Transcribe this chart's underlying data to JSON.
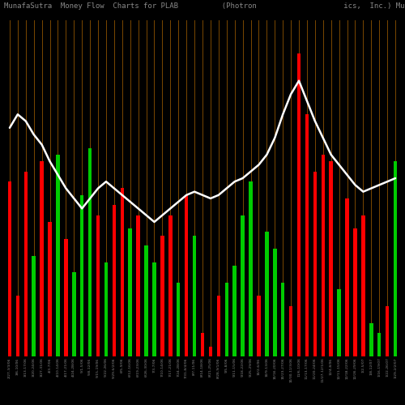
{
  "title": "MunafaSutra  Money Flow  Charts for PLAB          (Photron                    ics,  Inc.) MunafaSutra.com",
  "background_color": "#000000",
  "grid_color": "#7a4800",
  "bar_colors": [
    "#ff0000",
    "#ff0000",
    "#ff0000",
    "#00cc00",
    "#ff0000",
    "#ff0000",
    "#00cc00",
    "#ff0000",
    "#00cc00",
    "#00cc00",
    "#00cc00",
    "#ff0000",
    "#00cc00",
    "#ff0000",
    "#ff0000",
    "#00cc00",
    "#ff0000",
    "#00cc00",
    "#00cc00",
    "#ff0000",
    "#ff0000",
    "#00cc00",
    "#ff0000",
    "#00cc00",
    "#ff0000",
    "#ff0000",
    "#ff0000",
    "#00cc00",
    "#00cc00",
    "#00cc00",
    "#00cc00",
    "#ff0000",
    "#00cc00",
    "#00cc00",
    "#00cc00",
    "#ff0000",
    "#ff0000",
    "#ff0000",
    "#ff0000",
    "#ff0000",
    "#ff0000",
    "#00cc00",
    "#ff0000",
    "#ff0000",
    "#ff0000",
    "#00cc00",
    "#00cc00",
    "#ff0000",
    "#00cc00"
  ],
  "bar_heights": [
    52,
    18,
    55,
    30,
    58,
    40,
    60,
    35,
    25,
    48,
    62,
    42,
    28,
    45,
    50,
    38,
    42,
    33,
    28,
    36,
    42,
    22,
    48,
    36,
    7,
    3,
    18,
    22,
    27,
    42,
    52,
    18,
    37,
    32,
    22,
    15,
    90,
    72,
    55,
    60,
    58,
    20,
    47,
    38,
    42,
    10,
    7,
    15,
    58
  ],
  "line_values": [
    68,
    72,
    70,
    66,
    63,
    58,
    54,
    50,
    47,
    44,
    47,
    50,
    52,
    50,
    48,
    46,
    44,
    42,
    40,
    42,
    44,
    46,
    48,
    49,
    48,
    47,
    48,
    50,
    52,
    53,
    55,
    57,
    60,
    65,
    72,
    78,
    82,
    76,
    70,
    65,
    60,
    57,
    54,
    51,
    49,
    50,
    51,
    52,
    53
  ],
  "labels": [
    "2/27-3/3/06",
    "3/6-10/06",
    "3/13-17/06",
    "3/20-24/06",
    "3/27-31/06",
    "4/3-7/06",
    "4/10-14/06",
    "4/17-21/06",
    "4/24-28/06",
    "5/1-5/06",
    "5/8-12/06",
    "5/15-19/06",
    "5/22-26/06",
    "5/29-6/2/06",
    "6/5-9/06",
    "6/12-16/06",
    "6/19-23/06",
    "6/26-30/06",
    "7/3-7/06",
    "7/10-14/06",
    "7/17-21/06",
    "7/24-28/06",
    "7/31-8/4/06",
    "8/7-11/06",
    "8/14-18/06",
    "8/21-25/06",
    "8/28-9/1/06",
    "9/5-8/06",
    "9/11-15/06",
    "9/18-22/06",
    "9/25-29/06",
    "10/2-6/06",
    "10/9-13/06",
    "10/16-20/06",
    "10/23-27/06",
    "10/30-11/3/06",
    "11/6-10/06",
    "11/13-17/06",
    "11/20-24/06",
    "11/27-12/1/06",
    "12/4-8/06",
    "12/11-15/06",
    "12/18-22/06",
    "12/26-29/06",
    "1/2-5/07",
    "1/8-12/07",
    "1/16-19/07",
    "1/22-26/07",
    "1/29-2/2/07"
  ],
  "ylim_min": 0,
  "ylim_max": 100,
  "title_fontsize": 6.5,
  "title_color": "#888888",
  "label_fontsize": 3.2,
  "label_color": "#888888"
}
